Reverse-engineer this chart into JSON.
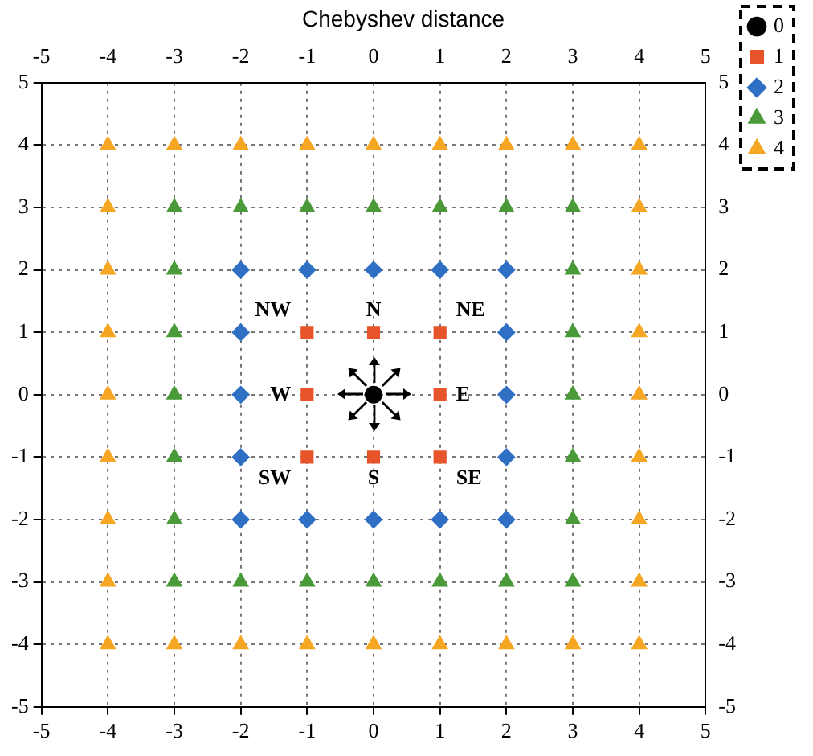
{
  "chart_data": {
    "type": "scatter",
    "title": "Chebyshev distance",
    "xlim": [
      -5,
      5
    ],
    "xticks": [
      -5,
      -4,
      -3,
      -2,
      -1,
      0,
      1,
      2,
      3,
      4,
      5
    ],
    "x2lim": [
      -5,
      5
    ],
    "x2ticks": [
      -5,
      -4,
      -3,
      -2,
      -1,
      0,
      1,
      2,
      3,
      4,
      5
    ],
    "ylim": [
      -5,
      5
    ],
    "yticks": [
      -5,
      -4,
      -3,
      -2,
      -1,
      0,
      1,
      2,
      3,
      4,
      5
    ],
    "y2lim": [
      -5,
      5
    ],
    "y2ticks": [
      -5,
      -4,
      -3,
      -2,
      -1,
      0,
      1,
      2,
      3,
      4,
      5
    ],
    "grid": true,
    "legend": "top right",
    "series": [
      {
        "name": "0",
        "color": "#000000",
        "marker": "circle",
        "x": [
          0
        ],
        "values": [
          0
        ]
      },
      {
        "name": "1",
        "color": "#e8542a",
        "marker": "square",
        "x": [
          -1,
          0,
          1,
          -1,
          1,
          -1,
          0,
          1
        ],
        "values": [
          1,
          1,
          1,
          0,
          0,
          -1,
          -1,
          -1
        ]
      },
      {
        "name": "2",
        "color": "#2f6fc4",
        "marker": "diamond",
        "x": [
          -2,
          -1,
          0,
          1,
          2,
          -2,
          2,
          -2,
          2,
          -2,
          2,
          -2,
          -1,
          0,
          1,
          2
        ],
        "values": [
          2,
          2,
          2,
          2,
          2,
          1,
          1,
          0,
          0,
          -1,
          -1,
          -2,
          -2,
          -2,
          -2,
          -2
        ]
      },
      {
        "name": "3",
        "color": "#4a9a3a",
        "marker": "triangle",
        "x": [
          -3,
          -2,
          -1,
          0,
          1,
          2,
          3,
          -3,
          3,
          -3,
          3,
          -3,
          3,
          -3,
          3,
          -3,
          3,
          -3,
          -2,
          -1,
          0,
          1,
          2,
          3
        ],
        "values": [
          3,
          3,
          3,
          3,
          3,
          3,
          3,
          2,
          2,
          1,
          1,
          0,
          0,
          -1,
          -1,
          -2,
          -2,
          -3,
          -3,
          -3,
          -3,
          -3,
          -3,
          -3
        ]
      },
      {
        "name": "4",
        "color": "#f5a623",
        "marker": "triangle",
        "x": [
          -4,
          -3,
          -2,
          -1,
          0,
          1,
          2,
          3,
          4,
          -4,
          4,
          -4,
          4,
          -4,
          4,
          -4,
          4,
          -4,
          4,
          -4,
          4,
          -4,
          4,
          -4,
          -3,
          -2,
          -1,
          0,
          1,
          2,
          3,
          4
        ],
        "values": [
          4,
          4,
          4,
          4,
          4,
          4,
          4,
          4,
          4,
          3,
          3,
          2,
          2,
          1,
          1,
          0,
          0,
          -1,
          -1,
          -2,
          -2,
          -3,
          -3,
          -4,
          -4,
          -4,
          -4,
          -4,
          -4,
          -4,
          -4,
          -4
        ]
      }
    ],
    "annotations": [
      {
        "text": "NW",
        "x": -1,
        "y": 1
      },
      {
        "text": "N",
        "x": 0,
        "y": 1
      },
      {
        "text": "NE",
        "x": 1,
        "y": 1
      },
      {
        "text": "W",
        "x": -1,
        "y": 0
      },
      {
        "text": "E",
        "x": 1,
        "y": 0
      },
      {
        "text": "SW",
        "x": -1,
        "y": -1
      },
      {
        "text": "S",
        "x": 0,
        "y": -1
      },
      {
        "text": "SE",
        "x": 1,
        "y": -1
      }
    ]
  }
}
